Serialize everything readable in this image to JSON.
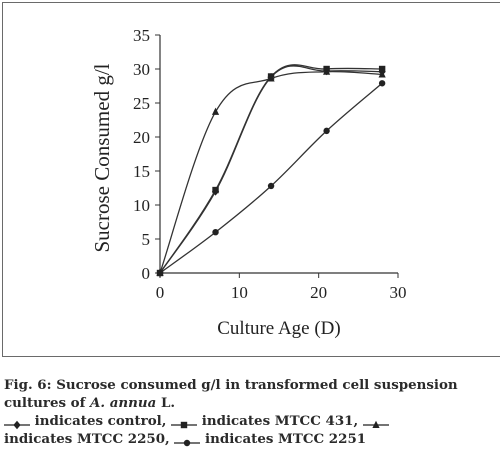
{
  "chart_data": {
    "type": "line",
    "xlabel": "Culture Age (D)",
    "ylabel": "Sucrose Consumed g/l",
    "xlim": [
      0,
      30
    ],
    "ylim": [
      0,
      35
    ],
    "x_ticks": [
      "0",
      "10",
      "20",
      "30"
    ],
    "y_ticks": [
      "0",
      "5",
      "10",
      "15",
      "20",
      "25",
      "30",
      "35"
    ],
    "grid": false,
    "series": [
      {
        "name": "control",
        "marker": "diamond",
        "x": [
          0,
          7,
          14,
          21,
          28
        ],
        "values": [
          0,
          12,
          28.8,
          29.7,
          29.6
        ]
      },
      {
        "name": "MTCC 431",
        "marker": "square",
        "x": [
          0,
          7,
          14,
          21,
          28
        ],
        "values": [
          0,
          12.2,
          28.9,
          30,
          30
        ]
      },
      {
        "name": "MTCC 2250",
        "marker": "triangle",
        "x": [
          0,
          7,
          14,
          21,
          28
        ],
        "values": [
          0,
          23.7,
          28.6,
          29.6,
          29.2
        ]
      },
      {
        "name": "MTCC 2251",
        "marker": "circle",
        "x": [
          0,
          7,
          14,
          21,
          28
        ],
        "values": [
          0,
          6,
          12.8,
          20.9,
          27.9
        ]
      }
    ]
  },
  "caption": {
    "line1": "Fig. 6: Sucrose consumed g/l in transformed cell suspension",
    "line2_prefix": "cultures of ",
    "line2_italic": "A. annua",
    "line2_suffix": " L.",
    "legend_items": [
      {
        "marker": "diamond",
        "text": " indicates control,"
      },
      {
        "marker": "square",
        "text": " indicates MTCC 431,"
      },
      {
        "marker": "triangle",
        "text": ""
      },
      {
        "marker": "none",
        "text": "indicates MTCC 2250,"
      },
      {
        "marker": "circle",
        "text": " indicates MTCC 2251"
      }
    ]
  }
}
